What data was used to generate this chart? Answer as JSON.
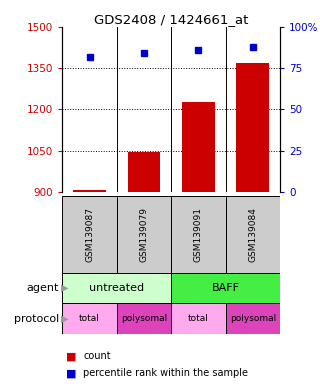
{
  "title": "GDS2408 / 1424661_at",
  "samples": [
    "GSM139087",
    "GSM139079",
    "GSM139091",
    "GSM139084"
  ],
  "counts": [
    908,
    1045,
    1228,
    1368
  ],
  "percentile_ranks": [
    82,
    84,
    86,
    88
  ],
  "ylim_left": [
    900,
    1500
  ],
  "ylim_right": [
    0,
    100
  ],
  "yticks_left": [
    900,
    1050,
    1200,
    1350,
    1500
  ],
  "yticks_right": [
    0,
    25,
    50,
    75,
    100
  ],
  "bar_color": "#cc0000",
  "dot_color": "#0000cc",
  "sample_box_color": "#cccccc",
  "agent_untreated_color": "#ccffcc",
  "agent_baff_color": "#44ee44",
  "protocol_total_color": "#ffaaee",
  "protocol_polysomal_color": "#dd44bb",
  "left_tick_color": "#cc0000",
  "right_tick_color": "#0000cc",
  "legend_count_color": "#cc0000",
  "legend_pct_color": "#0000cc"
}
